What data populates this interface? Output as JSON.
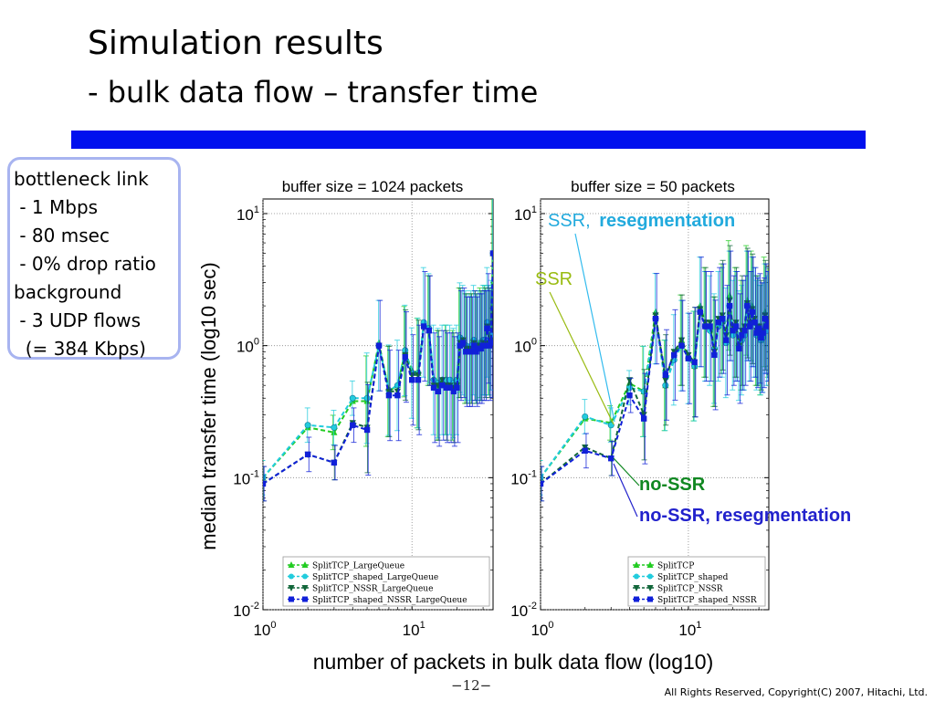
{
  "slide": {
    "title": "Simulation results",
    "subtitle": "- bulk data flow – transfer time",
    "page_number": "−12−",
    "copyright": "All Rights Reserved, Copyright(C) 2007, Hitachi, Ltd.",
    "accent_bar_color": "#0010ee"
  },
  "infobox": {
    "lines": [
      "bottleneck link",
      " - 1 Mbps",
      " - 80 msec",
      " - 0% drop ratio",
      "background",
      " - 3 UDP flows",
      "  (= 384 Kbps)"
    ],
    "border_color": "#a8b4f0"
  },
  "annotations": {
    "ssr_reseg": [
      "SSR,",
      "resegmentation"
    ],
    "ssr": "SSR",
    "nossr": "no-SSR",
    "nossr_reseg": "no-SSR, resegmentation"
  },
  "chart_data": [
    {
      "type": "line",
      "title": "buffer size = 1024 packets",
      "xlabel": "number of packets in bulk data flow (log10)",
      "ylabel": "median transfer time (log10 sec)",
      "xscale": "log",
      "yscale": "log",
      "xlim": [
        1,
        35
      ],
      "ylim": [
        0.01,
        10
      ],
      "grid": true,
      "legend_position": "bottom-right",
      "x": [
        1,
        2,
        3,
        4,
        5,
        6,
        7,
        8,
        9,
        10,
        11,
        12,
        13,
        14,
        15,
        16,
        17,
        18,
        19,
        20,
        21,
        22,
        23,
        24,
        25,
        26,
        27,
        28,
        29,
        30,
        31,
        32,
        33,
        34,
        35
      ],
      "series": [
        {
          "name": "SplitTCP_LargeQueue",
          "color": "#22cc22",
          "marker": "triangle-up",
          "values": [
            0.1,
            0.24,
            0.22,
            0.38,
            0.38,
            1.05,
            0.45,
            0.5,
            0.9,
            0.65,
            0.62,
            1.45,
            1.3,
            0.5,
            0.5,
            0.55,
            0.55,
            0.52,
            0.5,
            0.55,
            1.05,
            1.1,
            0.95,
            0.95,
            0.95,
            1.1,
            1.0,
            1.05,
            1.05,
            1.1,
            1.1,
            1.5,
            1.1,
            1.2,
            5.0
          ]
        },
        {
          "name": "SplitTCP_shaped_LargeQueue",
          "color": "#22ccdd",
          "marker": "circle",
          "values": [
            0.1,
            0.25,
            0.24,
            0.4,
            0.4,
            1.0,
            0.46,
            0.5,
            0.92,
            0.62,
            0.62,
            1.5,
            1.35,
            0.55,
            0.52,
            0.55,
            0.55,
            0.55,
            0.52,
            0.55,
            1.15,
            1.1,
            1.0,
            0.95,
            1.0,
            1.1,
            0.95,
            1.0,
            1.0,
            1.1,
            1.1,
            1.5,
            1.1,
            1.2,
            5.0
          ]
        },
        {
          "name": "SplitTCP_NSSR_LargeQueue",
          "color": "#11663a",
          "marker": "triangle-down",
          "values": [
            0.09,
            0.15,
            0.13,
            0.26,
            0.24,
            1.0,
            0.45,
            0.45,
            0.85,
            0.6,
            0.6,
            1.4,
            1.3,
            0.5,
            0.5,
            0.55,
            0.5,
            0.5,
            0.48,
            0.5,
            1.05,
            1.1,
            0.95,
            0.95,
            0.95,
            1.05,
            0.95,
            1.0,
            1.0,
            1.05,
            1.05,
            1.4,
            1.05,
            1.1,
            5.0
          ]
        },
        {
          "name": "SplitTCP_shaped_NSSR_LargeQueue",
          "color": "#1020d8",
          "marker": "square",
          "values": [
            0.09,
            0.15,
            0.13,
            0.25,
            0.23,
            1.0,
            0.42,
            0.42,
            0.82,
            0.55,
            0.55,
            1.4,
            1.3,
            0.48,
            0.45,
            0.5,
            0.48,
            0.48,
            0.45,
            0.48,
            1.0,
            1.05,
            0.9,
            0.9,
            0.9,
            1.0,
            0.9,
            0.95,
            0.95,
            1.0,
            1.0,
            1.35,
            1.0,
            1.05,
            5.0
          ]
        }
      ]
    },
    {
      "type": "line",
      "title": "buffer size = 50 packets",
      "xlabel": "number of packets in bulk data flow (log10)",
      "ylabel": "median transfer time (log10 sec)",
      "xscale": "log",
      "yscale": "log",
      "xlim": [
        1,
        35
      ],
      "ylim": [
        0.01,
        10
      ],
      "grid": true,
      "legend_position": "bottom-right",
      "x": [
        1,
        2,
        3,
        4,
        5,
        6,
        7,
        8,
        9,
        10,
        11,
        12,
        13,
        14,
        15,
        16,
        17,
        18,
        19,
        20,
        21,
        22,
        23,
        24,
        25,
        26,
        27,
        28,
        29,
        30,
        31,
        32,
        33,
        34,
        35
      ],
      "series": [
        {
          "name": "SplitTCP",
          "color": "#22cc22",
          "marker": "triangle-up",
          "values": [
            0.1,
            0.28,
            0.26,
            0.52,
            0.45,
            1.8,
            0.5,
            0.8,
            1.1,
            0.8,
            0.7,
            2.0,
            1.5,
            1.4,
            0.9,
            1.5,
            1.6,
            1.1,
            2.4,
            1.3,
            1.5,
            1.0,
            1.2,
            1.3,
            2.2,
            1.5,
            2.0,
            1.6,
            1.3,
            1.4,
            1.1,
            1.2,
            1.8,
            1.4,
            1.5
          ]
        },
        {
          "name": "SplitTCP_shaped",
          "color": "#22ccdd",
          "marker": "circle",
          "values": [
            0.1,
            0.29,
            0.25,
            0.48,
            0.45,
            1.6,
            0.5,
            0.78,
            1.0,
            0.8,
            0.7,
            1.8,
            1.4,
            1.3,
            0.95,
            1.4,
            1.5,
            1.05,
            2.0,
            1.2,
            1.4,
            1.0,
            1.1,
            1.2,
            2.0,
            1.4,
            1.8,
            1.5,
            1.2,
            1.3,
            1.1,
            1.15,
            1.6,
            1.3,
            1.4
          ]
        },
        {
          "name": "SplitTCP_NSSR",
          "color": "#11663a",
          "marker": "triangle-down",
          "values": [
            0.09,
            0.17,
            0.14,
            0.55,
            0.3,
            1.7,
            0.55,
            0.9,
            1.1,
            0.85,
            0.75,
            1.9,
            1.5,
            1.5,
            0.9,
            1.6,
            1.7,
            1.2,
            2.2,
            1.4,
            1.5,
            1.0,
            1.3,
            1.4,
            2.1,
            1.5,
            1.9,
            1.6,
            1.3,
            1.4,
            1.2,
            1.3,
            1.7,
            1.5,
            1.6
          ]
        },
        {
          "name": "SplitTCP_shaped_NSSR",
          "color": "#1020d8",
          "marker": "square",
          "values": [
            0.09,
            0.16,
            0.14,
            0.42,
            0.28,
            1.6,
            0.6,
            0.85,
            1.0,
            0.8,
            0.75,
            1.8,
            1.4,
            1.4,
            0.85,
            1.5,
            1.6,
            1.1,
            2.0,
            1.3,
            1.4,
            0.95,
            1.2,
            1.3,
            2.0,
            1.4,
            1.8,
            1.5,
            1.25,
            1.35,
            1.15,
            1.25,
            1.6,
            1.4,
            1.5
          ]
        }
      ]
    }
  ],
  "axes": {
    "y_ticks": [
      {
        "base": "10",
        "exp": "1",
        "value": 10
      },
      {
        "base": "10",
        "exp": "0",
        "value": 1
      },
      {
        "base": "10",
        "exp": "-1",
        "value": 0.1
      },
      {
        "base": "10",
        "exp": "-2",
        "value": 0.01
      }
    ],
    "x_ticks": [
      {
        "base": "10",
        "exp": "0",
        "value": 1
      },
      {
        "base": "10",
        "exp": "1",
        "value": 10
      }
    ]
  }
}
